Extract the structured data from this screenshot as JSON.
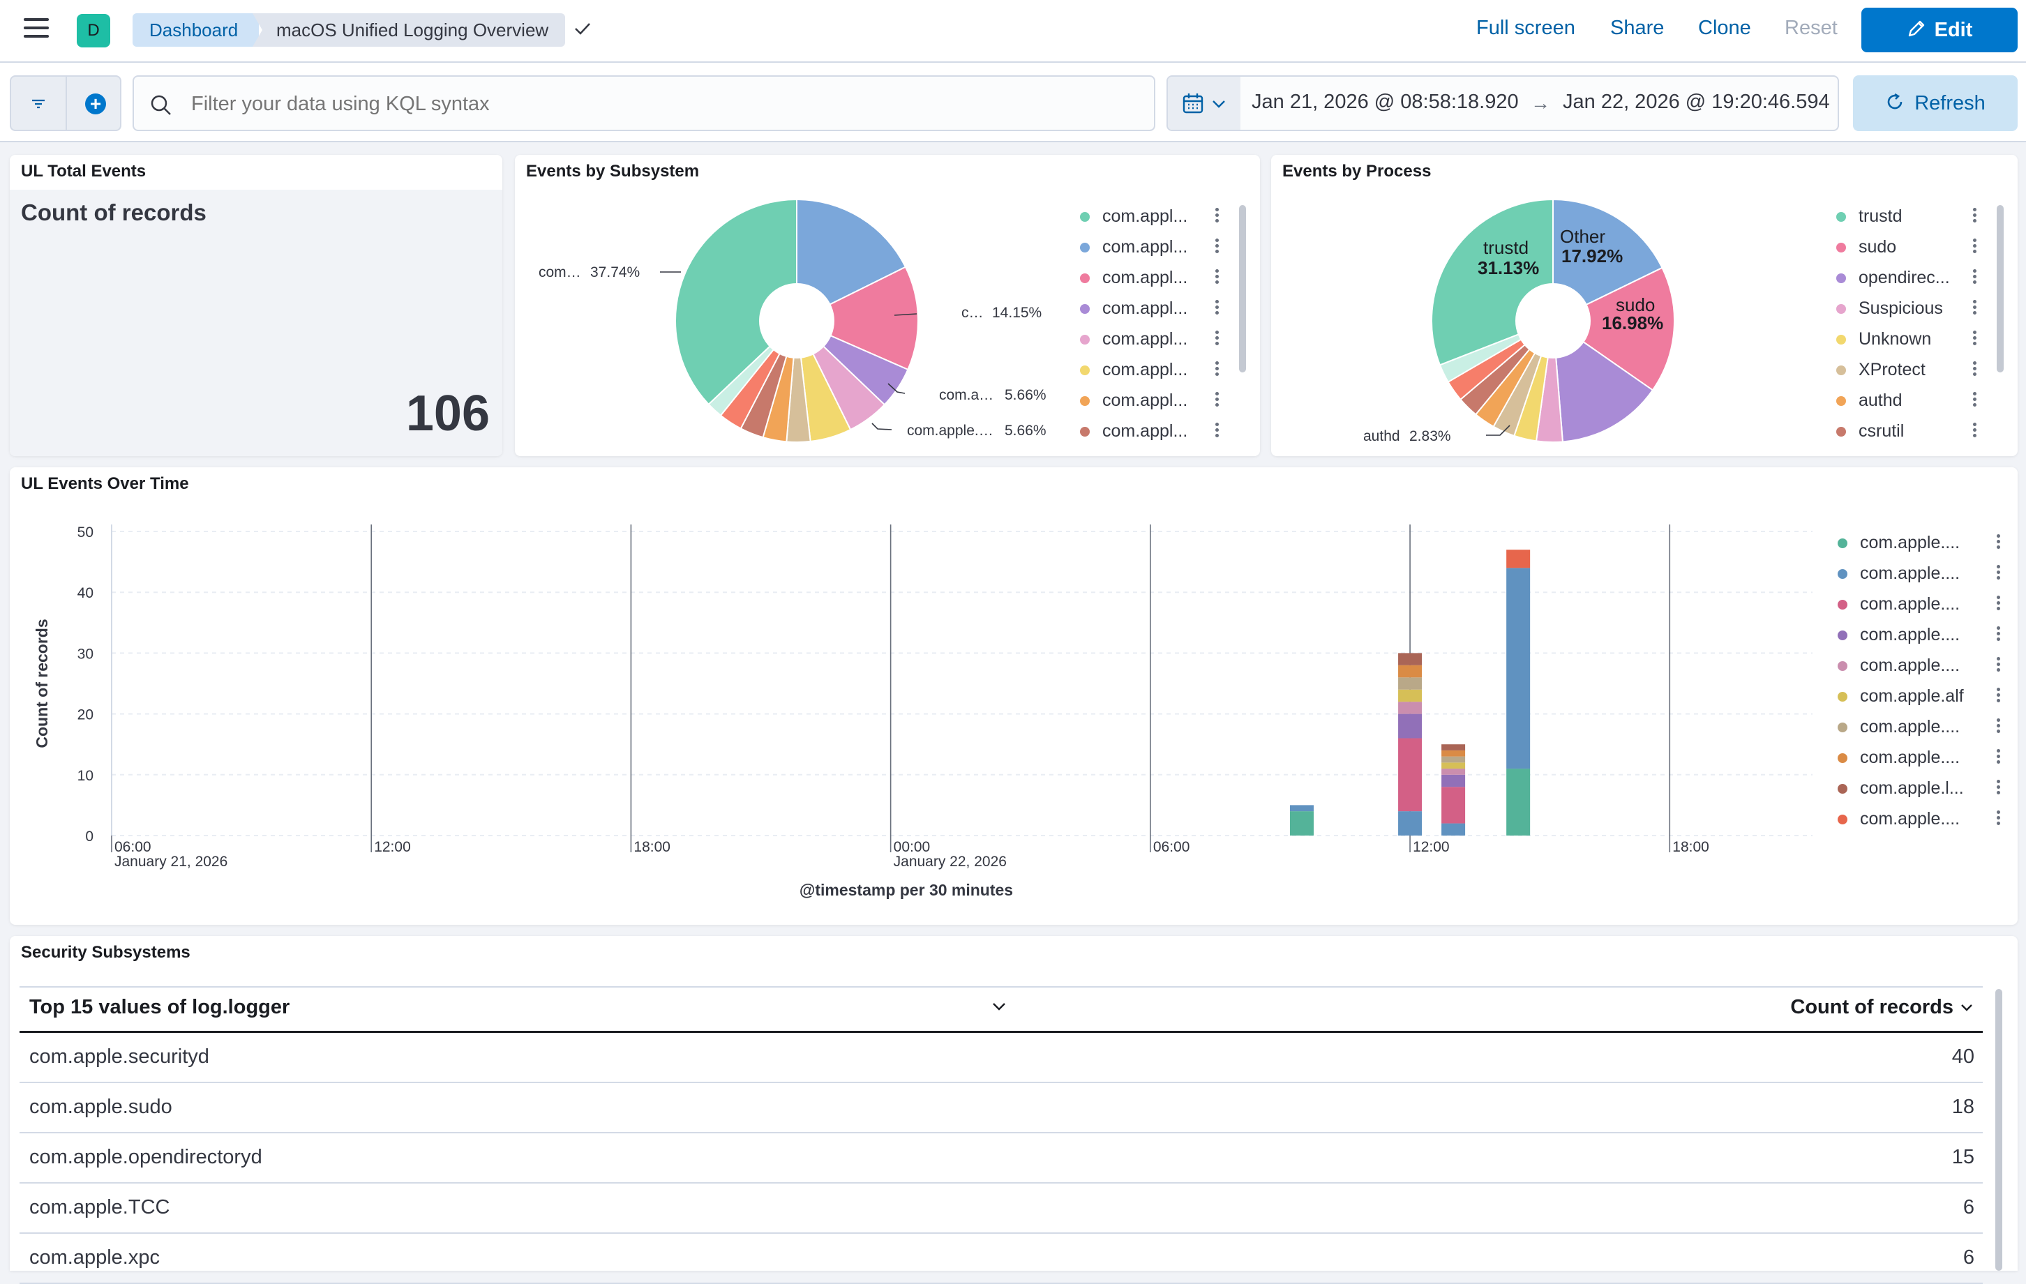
{
  "header": {
    "space_initial": "D",
    "breadcrumb_root": "Dashboard",
    "breadcrumb_current": "macOS Unified Logging Overview",
    "actions": {
      "full_screen": "Full screen",
      "share": "Share",
      "clone": "Clone",
      "reset": "Reset",
      "edit": "Edit"
    }
  },
  "query": {
    "placeholder": "Filter your data using KQL syntax",
    "date_start": "Jan 21, 2026 @ 08:58:18.920",
    "date_arrow": "→",
    "date_end": "Jan 22, 2026 @ 19:20:46.594",
    "refresh": "Refresh"
  },
  "metric_panel": {
    "title": "UL Total Events",
    "label": "Count of records",
    "value": "106"
  },
  "subsystem_panel": {
    "title": "Events by Subsystem",
    "callouts": [
      {
        "label": "com…",
        "pct": "37.74%"
      },
      {
        "label": "c…",
        "pct": "14.15%"
      },
      {
        "label": "com.a…",
        "pct": "5.66%"
      },
      {
        "label": "com.apple.…",
        "pct": "5.66%"
      }
    ],
    "legend": [
      "com.appl...",
      "com.appl...",
      "com.appl...",
      "com.appl...",
      "com.appl...",
      "com.appl...",
      "com.appl...",
      "com.appl..."
    ],
    "chart_data": {
      "type": "pie",
      "slices": [
        {
          "name": "s1",
          "value": 18.0,
          "color": "#7ba7da"
        },
        {
          "name": "s2",
          "value": 14.15,
          "color": "#ef7b9e"
        },
        {
          "name": "s3",
          "value": 5.66,
          "color": "#a98bd6"
        },
        {
          "name": "s4",
          "value": 5.66,
          "color": "#e6a5cd"
        },
        {
          "name": "s5",
          "value": 5.6,
          "color": "#f2d86e"
        },
        {
          "name": "s6",
          "value": 3.2,
          "color": "#d6bf9a"
        },
        {
          "name": "s7",
          "value": 3.2,
          "color": "#f1a457"
        },
        {
          "name": "s8",
          "value": 3.2,
          "color": "#c7796b"
        },
        {
          "name": "s9",
          "value": 3.2,
          "color": "#f67e6a"
        },
        {
          "name": "s10",
          "value": 2.2,
          "color": "#c9efe4"
        },
        {
          "name": "s11",
          "value": 37.74,
          "color": "#6fcfb2"
        }
      ]
    }
  },
  "process_panel": {
    "title": "Events by Process",
    "slice_labels": [
      {
        "name": "trustd",
        "pct": "31.13%"
      },
      {
        "name": "Other",
        "pct": "17.92%"
      },
      {
        "name": "sudo",
        "pct": "16.98%"
      }
    ],
    "callout": {
      "label": "authd",
      "pct": "2.83%"
    },
    "legend": [
      {
        "label": "trustd",
        "color": "#6fcfb2"
      },
      {
        "label": "sudo",
        "color": "#ef7b9e"
      },
      {
        "label": "opendirec...",
        "color": "#a98bd6"
      },
      {
        "label": "Suspicious",
        "color": "#e6a5cd"
      },
      {
        "label": "Unknown",
        "color": "#f2d86e"
      },
      {
        "label": "XProtect",
        "color": "#d6bf9a"
      },
      {
        "label": "authd",
        "color": "#f1a457"
      },
      {
        "label": "csrutil",
        "color": "#c7796b"
      }
    ],
    "chart_data": {
      "type": "pie",
      "slices": [
        {
          "name": "Other",
          "value": 17.92,
          "color": "#7ba7da"
        },
        {
          "name": "sudo",
          "value": 16.98,
          "color": "#ef7b9e"
        },
        {
          "name": "opendirectoryd",
          "value": 14.15,
          "color": "#a98bd6"
        },
        {
          "name": "Suspicious",
          "value": 3.5,
          "color": "#e6a5cd"
        },
        {
          "name": "Unknown",
          "value": 3.0,
          "color": "#f2d86e"
        },
        {
          "name": "XProtect",
          "value": 3.0,
          "color": "#d6bf9a"
        },
        {
          "name": "authd",
          "value": 2.83,
          "color": "#f1a457"
        },
        {
          "name": "csrutil",
          "value": 2.83,
          "color": "#c7796b"
        },
        {
          "name": "x9",
          "value": 2.83,
          "color": "#f67e6a"
        },
        {
          "name": "x10",
          "value": 2.5,
          "color": "#c9efe4"
        },
        {
          "name": "trustd",
          "value": 31.13,
          "color": "#6fcfb2"
        }
      ]
    }
  },
  "time_panel": {
    "title": "UL Events Over Time",
    "legend": [
      {
        "label": "com.apple....",
        "color": "#54b399"
      },
      {
        "label": "com.apple....",
        "color": "#6092c0"
      },
      {
        "label": "com.apple....",
        "color": "#d36086"
      },
      {
        "label": "com.apple....",
        "color": "#9170b8"
      },
      {
        "label": "com.apple....",
        "color": "#ca8eae"
      },
      {
        "label": "com.apple.alf",
        "color": "#d6bf57"
      },
      {
        "label": "com.apple....",
        "color": "#b9a888"
      },
      {
        "label": "com.apple....",
        "color": "#da8b45"
      },
      {
        "label": "com.apple.l...",
        "color": "#aa6556"
      },
      {
        "label": "com.apple....",
        "color": "#e7664c"
      }
    ],
    "chart_data": {
      "type": "bar",
      "title": "UL Events Over Time",
      "xlabel": "@timestamp per 30 minutes",
      "ylabel": "Count of records",
      "ylim": [
        0,
        50
      ],
      "yticks": [
        "0",
        "10",
        "20",
        "30",
        "40",
        "50"
      ],
      "xticks": [
        {
          "hour": 6,
          "label": "06:00",
          "sub": "January 21, 2026"
        },
        {
          "hour": 12,
          "label": "12:00",
          "sub": ""
        },
        {
          "hour": 18,
          "label": "18:00",
          "sub": ""
        },
        {
          "hour": 24,
          "label": "00:00",
          "sub": "January 22, 2026"
        },
        {
          "hour": 30,
          "label": "06:00",
          "sub": ""
        },
        {
          "hour": 36,
          "label": "12:00",
          "sub": ""
        },
        {
          "hour": 42,
          "label": "18:00",
          "sub": ""
        }
      ],
      "x_range_hours": [
        6,
        45.3
      ],
      "bars": [
        {
          "hour": 33.5,
          "stack": [
            {
              "color": "#54b399",
              "value": 4
            },
            {
              "color": "#6092c0",
              "value": 1
            }
          ]
        },
        {
          "hour": 36,
          "stack": [
            {
              "color": "#6092c0",
              "value": 4
            },
            {
              "color": "#d36086",
              "value": 12
            },
            {
              "color": "#9170b8",
              "value": 4
            },
            {
              "color": "#ca8eae",
              "value": 2
            },
            {
              "color": "#d6bf57",
              "value": 2
            },
            {
              "color": "#b9a888",
              "value": 2
            },
            {
              "color": "#da8b45",
              "value": 2
            },
            {
              "color": "#aa6556",
              "value": 2
            }
          ]
        },
        {
          "hour": 37,
          "stack": [
            {
              "color": "#6092c0",
              "value": 2
            },
            {
              "color": "#d36086",
              "value": 6
            },
            {
              "color": "#9170b8",
              "value": 2
            },
            {
              "color": "#ca8eae",
              "value": 1
            },
            {
              "color": "#d6bf57",
              "value": 1
            },
            {
              "color": "#b9a888",
              "value": 1
            },
            {
              "color": "#da8b45",
              "value": 1
            },
            {
              "color": "#aa6556",
              "value": 1
            }
          ]
        },
        {
          "hour": 38.5,
          "stack": [
            {
              "color": "#54b399",
              "value": 11
            },
            {
              "color": "#6092c0",
              "value": 33
            },
            {
              "color": "#e7664c",
              "value": 3
            }
          ]
        }
      ]
    }
  },
  "table_panel": {
    "title": "Security Subsystems",
    "col_left": "Top 15 values of log.logger",
    "col_right": "Count of records",
    "rows": [
      {
        "name": "com.apple.securityd",
        "count": "40"
      },
      {
        "name": "com.apple.sudo",
        "count": "18"
      },
      {
        "name": "com.apple.opendirectoryd",
        "count": "15"
      },
      {
        "name": "com.apple.TCC",
        "count": "6"
      },
      {
        "name": "com.apple.xpc",
        "count": "6"
      }
    ]
  }
}
